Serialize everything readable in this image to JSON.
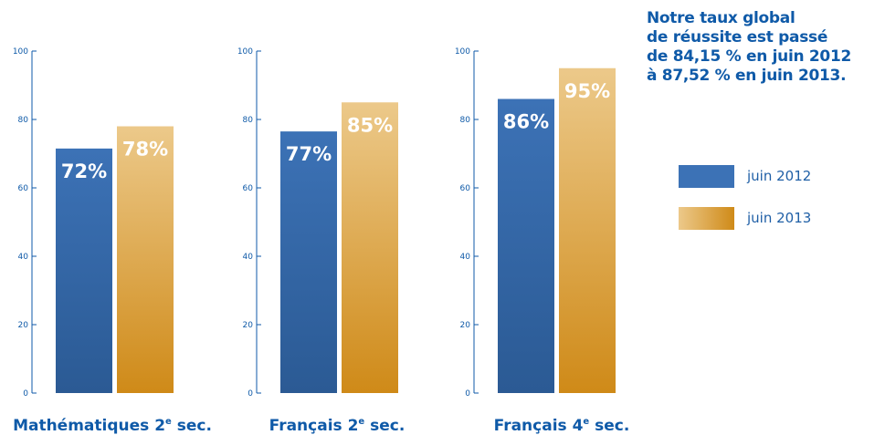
{
  "headline": {
    "lines": [
      "Notre taux global",
      "de réussite est passé",
      "de 84,15 % en juin 2012",
      "à 87,52 % en juin 2013."
    ]
  },
  "legend": [
    {
      "label": "juin 2012",
      "color": "#3a6fb3"
    },
    {
      "label": "juin 2013",
      "color": "#d38f22"
    }
  ],
  "colors": {
    "blue_top": "#3c72b6",
    "blue_bottom": "#2b5a94",
    "gold_top": "#ecc98a",
    "gold_bottom": "#cf8a18",
    "axis": "#0f5aa8",
    "title": "#0f5aa8",
    "bar_label": "#ffffff"
  },
  "chart_data": [
    {
      "type": "bar",
      "title_main": "Mathématiques 2",
      "title_sup": "e",
      "title_end": " sec.",
      "ylim": [
        0,
        100
      ],
      "yticks": [
        0,
        20,
        40,
        60,
        80,
        100
      ],
      "series": [
        {
          "label": "juin 2012",
          "value": 71.5,
          "data_label": "72%"
        },
        {
          "label": "juin 2013",
          "value": 78,
          "data_label": "78%"
        }
      ]
    },
    {
      "type": "bar",
      "title_main": "Français 2",
      "title_sup": "e",
      "title_end": " sec.",
      "ylim": [
        0,
        100
      ],
      "yticks": [
        0,
        20,
        40,
        60,
        80,
        100
      ],
      "series": [
        {
          "label": "juin 2012",
          "value": 76.5,
          "data_label": "77%"
        },
        {
          "label": "juin 2013",
          "value": 85,
          "data_label": "85%"
        }
      ]
    },
    {
      "type": "bar",
      "title_main": "Français 4",
      "title_sup": "e",
      "title_end": " sec.",
      "ylim": [
        0,
        100
      ],
      "yticks": [
        0,
        20,
        40,
        60,
        80,
        100
      ],
      "series": [
        {
          "label": "juin 2012",
          "value": 86,
          "data_label": "86%"
        },
        {
          "label": "juin 2013",
          "value": 95,
          "data_label": "95%"
        }
      ]
    }
  ]
}
